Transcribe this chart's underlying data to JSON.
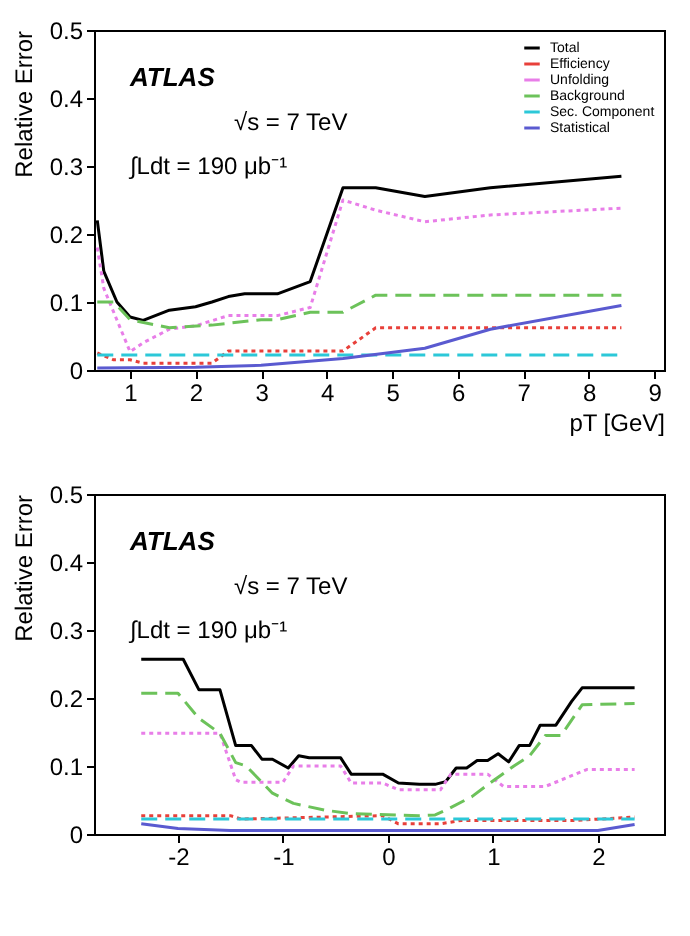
{
  "chart_data": [
    {
      "type": "line",
      "ylabel": "Relative Error",
      "xlabel": "pT [GeV]",
      "xlim": [
        0.45,
        9.15
      ],
      "ylim": [
        0,
        0.5
      ],
      "xticks": [
        1,
        2,
        3,
        4,
        5,
        6,
        7,
        8,
        9
      ],
      "yticks": [
        0,
        0.1,
        0.2,
        0.3,
        0.4,
        0.5
      ],
      "grid": false,
      "legend": "top right",
      "annotations": [
        "ATLAS",
        "√s = 7 TeV",
        "∫Ldt = 190 μb⁻¹"
      ],
      "series": [
        {
          "name": "Total",
          "color": "#000000",
          "line_style": "solid",
          "x": [
            0.5,
            0.6,
            0.8,
            1.0,
            1.2,
            1.6,
            2.0,
            2.25,
            2.5,
            2.75,
            3.25,
            3.75,
            4.25,
            4.75,
            5.5,
            6.5,
            8.5
          ],
          "values": [
            0.22,
            0.145,
            0.1,
            0.078,
            0.073,
            0.088,
            0.093,
            0.1,
            0.108,
            0.112,
            0.112,
            0.13,
            0.268,
            0.268,
            0.255,
            0.268,
            0.285
          ]
        },
        {
          "name": "Efficiency",
          "color": "#e8403a",
          "line_style": "dotted",
          "x": [
            0.5,
            0.75,
            1.0,
            1.2,
            2.25,
            2.5,
            4.25,
            4.75,
            8.5
          ],
          "values": [
            0.025,
            0.015,
            0.015,
            0.01,
            0.01,
            0.028,
            0.028,
            0.062,
            0.062
          ]
        },
        {
          "name": "Unfolding",
          "color": "#e87ee8",
          "line_style": "dotted",
          "x": [
            0.5,
            0.6,
            1.0,
            1.2,
            1.6,
            2.0,
            2.5,
            3.25,
            3.75,
            4.25,
            4.75,
            5.5,
            6.5,
            8.5
          ],
          "values": [
            0.18,
            0.12,
            0.027,
            0.04,
            0.06,
            0.065,
            0.08,
            0.08,
            0.092,
            0.25,
            0.235,
            0.218,
            0.228,
            0.238
          ]
        },
        {
          "name": "Background",
          "color": "#6cc25a",
          "line_style": "dashed",
          "x": [
            0.5,
            0.75,
            1.0,
            1.6,
            2.25,
            3.0,
            3.25,
            3.75,
            4.25,
            4.75,
            8.5
          ],
          "values": [
            0.1,
            0.1,
            0.074,
            0.062,
            0.066,
            0.074,
            0.074,
            0.085,
            0.085,
            0.11,
            0.11
          ]
        },
        {
          "name": "Sec. Component",
          "color": "#2cc8d8",
          "line_style": "dashed",
          "x": [
            0.5,
            8.5
          ],
          "values": [
            0.022,
            0.022
          ]
        },
        {
          "name": "Statistical",
          "color": "#5a5ad0",
          "line_style": "solid",
          "x": [
            0.5,
            2.0,
            3.0,
            4.25,
            5.5,
            6.5,
            8.5
          ],
          "values": [
            0.003,
            0.004,
            0.007,
            0.017,
            0.032,
            0.06,
            0.095
          ]
        }
      ]
    },
    {
      "type": "line",
      "ylabel": "Relative Error",
      "xlim": [
        -2.8,
        2.63
      ],
      "ylim": [
        0,
        0.5
      ],
      "xticks": [
        -2,
        -1,
        0,
        1,
        2
      ],
      "yticks": [
        0,
        0.1,
        0.2,
        0.3,
        0.4,
        0.5
      ],
      "grid": false,
      "legend": "top right",
      "annotations": [
        "ATLAS",
        "√s = 7 TeV",
        "∫Ldt = 190 μb⁻¹"
      ],
      "series": [
        {
          "name": "Total",
          "color": "#000000",
          "line_style": "solid",
          "x": [
            -2.35,
            -1.95,
            -1.8,
            -1.6,
            -1.45,
            -1.3,
            -1.2,
            -1.1,
            -0.95,
            -0.85,
            -0.75,
            -0.45,
            -0.35,
            -0.05,
            0.1,
            0.3,
            0.45,
            0.55,
            0.65,
            0.75,
            0.85,
            0.95,
            1.05,
            1.15,
            1.25,
            1.35,
            1.45,
            1.6,
            1.75,
            1.85,
            2.35
          ],
          "values": [
            0.257,
            0.257,
            0.212,
            0.212,
            0.13,
            0.13,
            0.11,
            0.11,
            0.097,
            0.115,
            0.112,
            0.112,
            0.088,
            0.088,
            0.075,
            0.073,
            0.073,
            0.077,
            0.097,
            0.097,
            0.108,
            0.108,
            0.118,
            0.106,
            0.13,
            0.13,
            0.16,
            0.16,
            0.195,
            0.215,
            0.215
          ]
        },
        {
          "name": "Efficiency",
          "color": "#e8403a",
          "line_style": "dotted",
          "x": [
            -2.35,
            -1.5,
            -1.4,
            -0.05,
            0.1,
            0.5,
            0.7,
            1.8,
            2.35
          ],
          "values": [
            0.027,
            0.027,
            0.022,
            0.027,
            0.015,
            0.015,
            0.02,
            0.02,
            0.025
          ]
        },
        {
          "name": "Unfolding",
          "color": "#e87ee8",
          "line_style": "dotted",
          "x": [
            -2.35,
            -1.6,
            -1.45,
            -1.4,
            -1.0,
            -0.9,
            -0.45,
            -0.35,
            -0.05,
            0.1,
            0.5,
            0.6,
            0.95,
            1.1,
            1.5,
            1.9,
            2.35
          ],
          "values": [
            0.148,
            0.148,
            0.08,
            0.076,
            0.076,
            0.1,
            0.1,
            0.075,
            0.075,
            0.065,
            0.065,
            0.088,
            0.088,
            0.07,
            0.07,
            0.095,
            0.095
          ]
        },
        {
          "name": "Background",
          "color": "#6cc25a",
          "line_style": "dashed",
          "x": [
            -2.35,
            -2.0,
            -1.8,
            -1.6,
            -1.45,
            -1.35,
            -1.1,
            -0.9,
            -0.6,
            -0.35,
            0.3,
            0.45,
            0.55,
            0.8,
            1.0,
            1.2,
            1.35,
            1.5,
            1.65,
            1.85,
            2.35
          ],
          "values": [
            0.207,
            0.207,
            0.17,
            0.148,
            0.105,
            0.1,
            0.06,
            0.045,
            0.035,
            0.03,
            0.027,
            0.028,
            0.035,
            0.055,
            0.078,
            0.1,
            0.115,
            0.145,
            0.145,
            0.19,
            0.192
          ]
        },
        {
          "name": "Sec. Component",
          "color": "#2cc8d8",
          "line_style": "dashed",
          "x": [
            -2.35,
            2.35
          ],
          "values": [
            0.022,
            0.022
          ]
        },
        {
          "name": "Statistical",
          "color": "#5a5ad0",
          "line_style": "solid",
          "x": [
            -2.35,
            -2.0,
            -1.5,
            2.0,
            2.35
          ],
          "values": [
            0.015,
            0.008,
            0.005,
            0.005,
            0.014
          ]
        }
      ]
    }
  ]
}
